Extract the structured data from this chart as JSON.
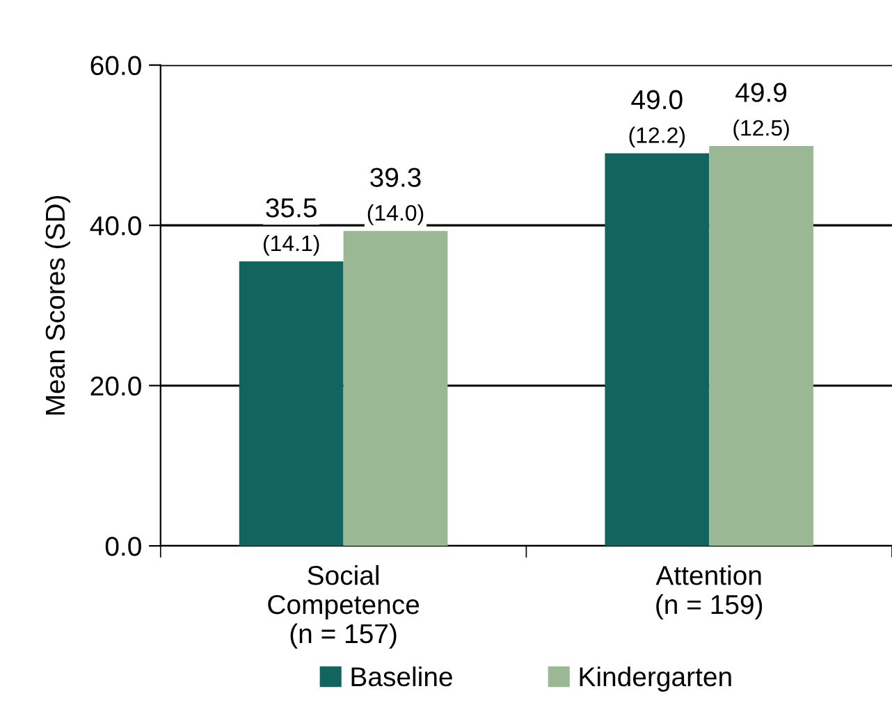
{
  "chart_data": {
    "type": "bar",
    "ylabel": "Mean Scores (SD)",
    "categories": [
      "Social\nCompetence\n(n = 157)",
      "Attention\n(n = 159)"
    ],
    "series": [
      {
        "name": "Baseline",
        "color": "#12655f",
        "values": [
          35.5,
          49.0
        ],
        "value_labels": [
          "35.5\n(14.1)",
          "49.0\n(12.2)"
        ]
      },
      {
        "name": "Kindergarten",
        "color": "#9bb894",
        "values": [
          39.3,
          49.9
        ],
        "value_labels": [
          "39.3\n(14.0)",
          "49.9\n(12.5)"
        ]
      }
    ],
    "ylim": [
      0,
      60
    ],
    "yticks": [
      {
        "value": 0,
        "label": "0.0"
      },
      {
        "value": 20,
        "label": "20.0"
      },
      {
        "value": 40,
        "label": "40.0"
      },
      {
        "value": 60,
        "label": "60.0"
      }
    ],
    "grid": "y",
    "legend": "bottom"
  }
}
